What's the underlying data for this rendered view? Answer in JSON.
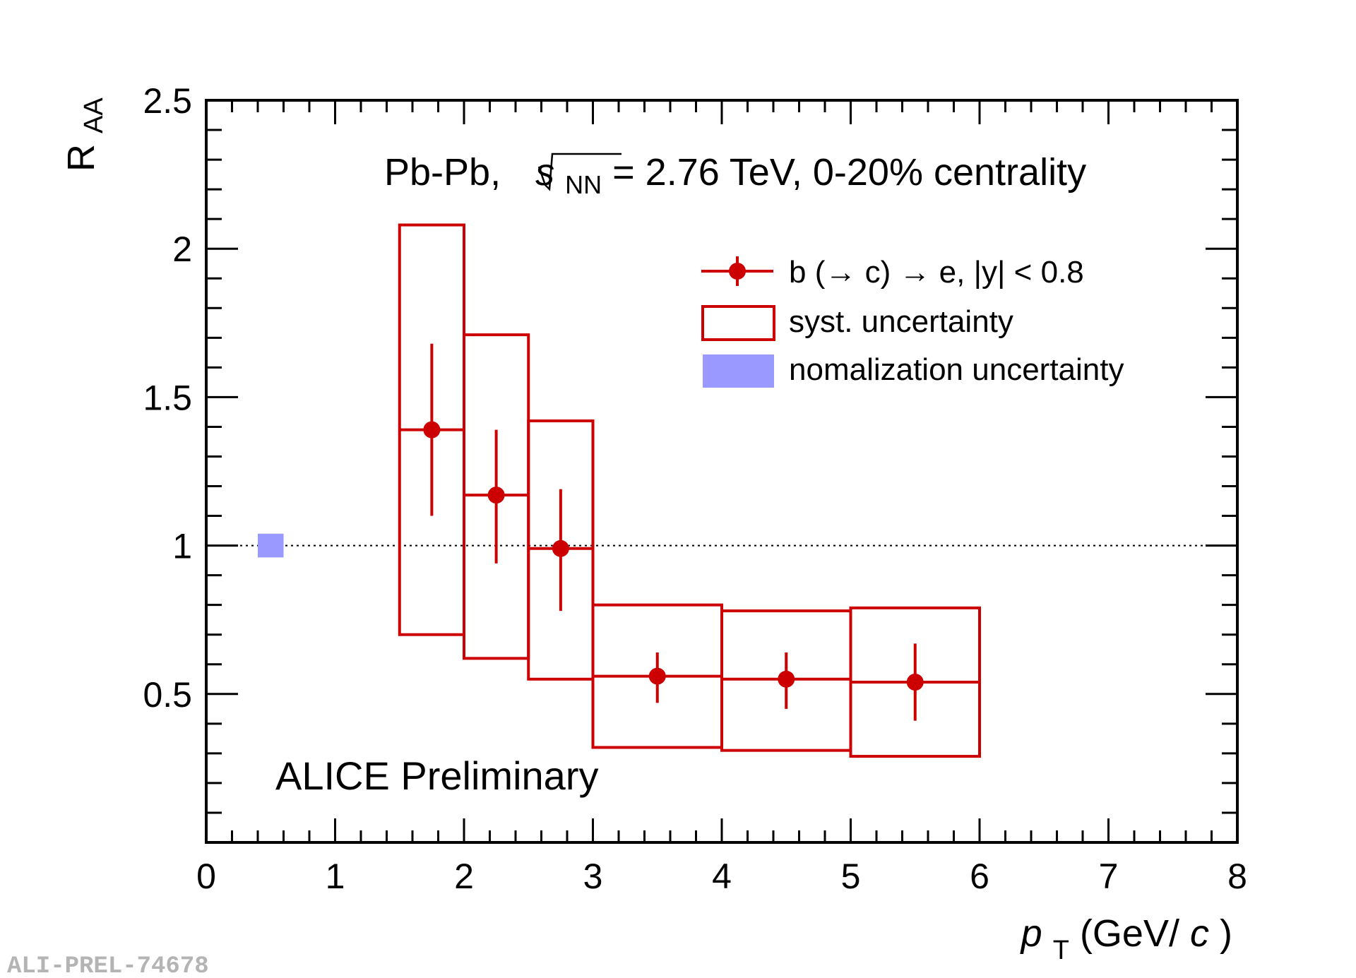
{
  "chart_data": {
    "type": "scatter",
    "title": "Pb-Pb, √s_NN = 2.76 TeV, 0-20% centrality",
    "title_parts": {
      "prefix": "Pb-Pb, ",
      "s": "s",
      "sub": "NN",
      "suffix": " = 2.76 TeV, 0-20% centrality"
    },
    "annotation": "ALICE Preliminary",
    "watermark": "ALI-PREL-74678",
    "ylabel": {
      "main": "R",
      "sub": "AA"
    },
    "xlabel": {
      "p": "p",
      "sub": "T",
      "unit_open": " (GeV/",
      "c": "c",
      "unit_close": ")"
    },
    "xlim": [
      0,
      8
    ],
    "ylim": [
      0,
      2.5
    ],
    "x_ticks": [
      "0",
      "1",
      "2",
      "3",
      "4",
      "5",
      "6",
      "7",
      "8"
    ],
    "y_ticks": [
      {
        "value": 0.5,
        "label": "0.5"
      },
      {
        "value": 1,
        "label": "1"
      },
      {
        "value": 1.5,
        "label": "1.5"
      },
      {
        "value": 2,
        "label": "2"
      },
      {
        "value": 2.5,
        "label": "2.5"
      }
    ],
    "reference_line": 1,
    "series": [
      {
        "name": "b (→ c) → e, |y| < 0.8",
        "color": "#cc0000",
        "points": [
          {
            "x": 1.75,
            "xlow": 1.5,
            "xhigh": 2.0,
            "y": 1.39,
            "stat_low": 1.1,
            "stat_high": 1.68,
            "syst_low": 0.7,
            "syst_high": 2.08
          },
          {
            "x": 2.25,
            "xlow": 2.0,
            "xhigh": 2.5,
            "y": 1.17,
            "stat_low": 0.94,
            "stat_high": 1.39,
            "syst_low": 0.62,
            "syst_high": 1.71
          },
          {
            "x": 2.75,
            "xlow": 2.5,
            "xhigh": 3.0,
            "y": 0.99,
            "stat_low": 0.78,
            "stat_high": 1.19,
            "syst_low": 0.55,
            "syst_high": 1.42
          },
          {
            "x": 3.5,
            "xlow": 3.0,
            "xhigh": 4.0,
            "y": 0.56,
            "stat_low": 0.47,
            "stat_high": 0.64,
            "syst_low": 0.32,
            "syst_high": 0.8
          },
          {
            "x": 4.5,
            "xlow": 4.0,
            "xhigh": 5.0,
            "y": 0.55,
            "stat_low": 0.45,
            "stat_high": 0.64,
            "syst_low": 0.31,
            "syst_high": 0.78
          },
          {
            "x": 5.5,
            "xlow": 5.0,
            "xhigh": 6.0,
            "y": 0.54,
            "stat_low": 0.41,
            "stat_high": 0.67,
            "syst_low": 0.29,
            "syst_high": 0.79
          }
        ]
      }
    ],
    "normalization_box": {
      "x_center": 0.5,
      "x_halfwidth": 0.1,
      "y_low": 0.96,
      "y_high": 1.04,
      "color": "#9999ff"
    },
    "legend": {
      "placement": "top-right",
      "entries": [
        {
          "label": "b (→ c) → e, |y| < 0.8",
          "kind": "marker"
        },
        {
          "label": "syst. uncertainty",
          "kind": "box"
        },
        {
          "label": "nomalization uncertainty",
          "kind": "fill"
        }
      ]
    }
  }
}
